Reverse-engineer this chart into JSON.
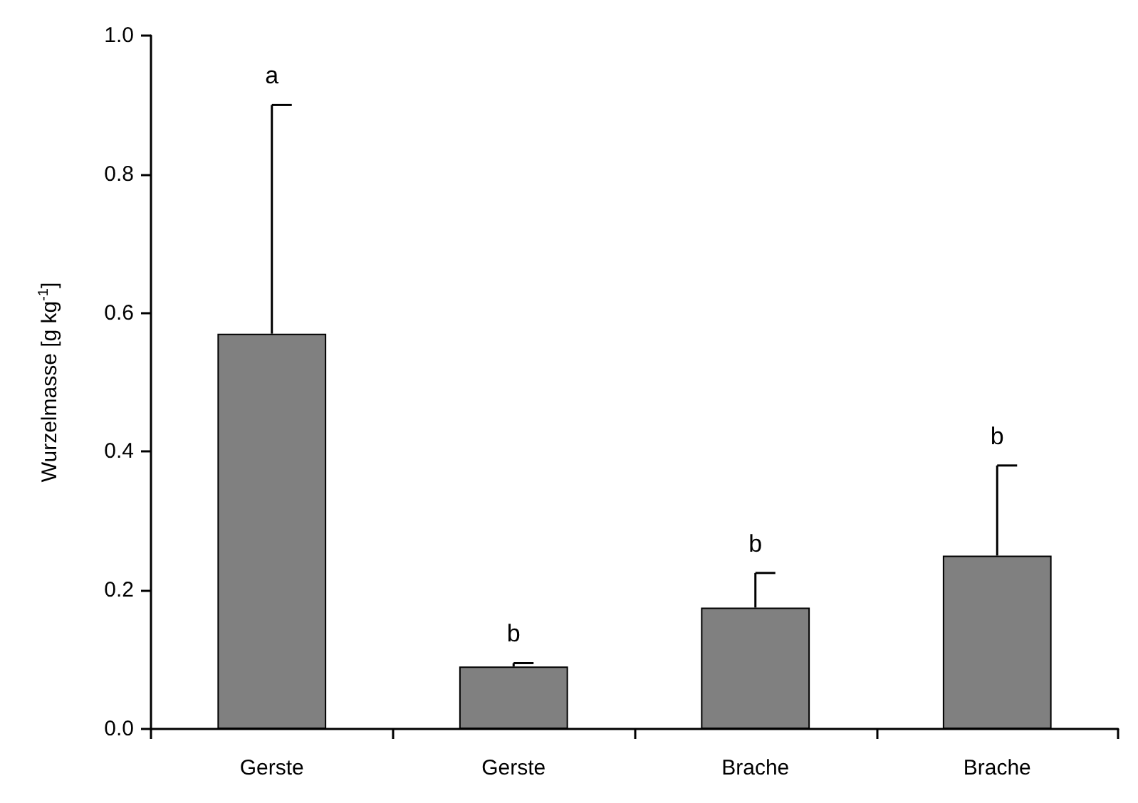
{
  "chart_data": {
    "type": "bar",
    "ylabel": "Wurzelmasse [g kg$^{-1}$]",
    "categories": [
      "Gerste",
      "Gerste",
      "Brache",
      "Brache"
    ],
    "values": [
      0.57,
      0.09,
      0.175,
      0.25
    ],
    "errors": [
      [
        0.57,
        0.9
      ],
      [
        0.09,
        0.095
      ],
      [
        0.175,
        0.225
      ],
      [
        0.25,
        0.38
      ]
    ],
    "annotations": [
      "a",
      "b",
      "b",
      "b"
    ],
    "color": "#808080",
    "ylim": [
      0,
      1
    ],
    "yticks": [
      {
        "value": 0,
        "label": "0.0"
      },
      0.2,
      0.4,
      0.6,
      0.8,
      {
        "value": 1,
        "label": "1.0"
      }
    ],
    "grid": false
  }
}
